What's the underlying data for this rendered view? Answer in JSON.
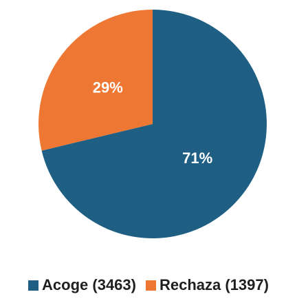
{
  "chart_data": {
    "type": "pie",
    "title": "",
    "legend_position": "bottom",
    "slices": [
      {
        "label": "Acoge (3463)",
        "value": 3463,
        "percent_label": "71%",
        "color": "#1f5f84"
      },
      {
        "label": "Rechaza (1397)",
        "value": 1397,
        "percent_label": "29%",
        "color": "#ee7733"
      }
    ]
  }
}
